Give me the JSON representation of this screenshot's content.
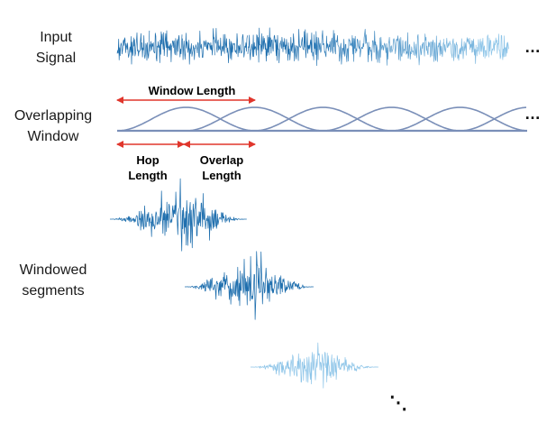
{
  "labels": {
    "input_signal_line1": "Input",
    "input_signal_line2": "Signal",
    "overlapping_window_line1": "Overlapping",
    "overlapping_window_line2": "Window",
    "windowed_segments_line1": "Windowed",
    "windowed_segments_line2": "segments"
  },
  "annotations": {
    "window_length": "Window Length",
    "hop_length_line1": "Hop",
    "hop_length_line2": "Length",
    "overlap_length_line1": "Overlap",
    "overlap_length_line2": "Length"
  },
  "ellipsis": {
    "signal": "…",
    "window": "…",
    "segments": "⋱"
  },
  "colors": {
    "signal_dark": "#1f6fae",
    "signal_light": "#8cc4e8",
    "window_curve": "#7a8fb8",
    "arrow": "#e0362c"
  }
}
